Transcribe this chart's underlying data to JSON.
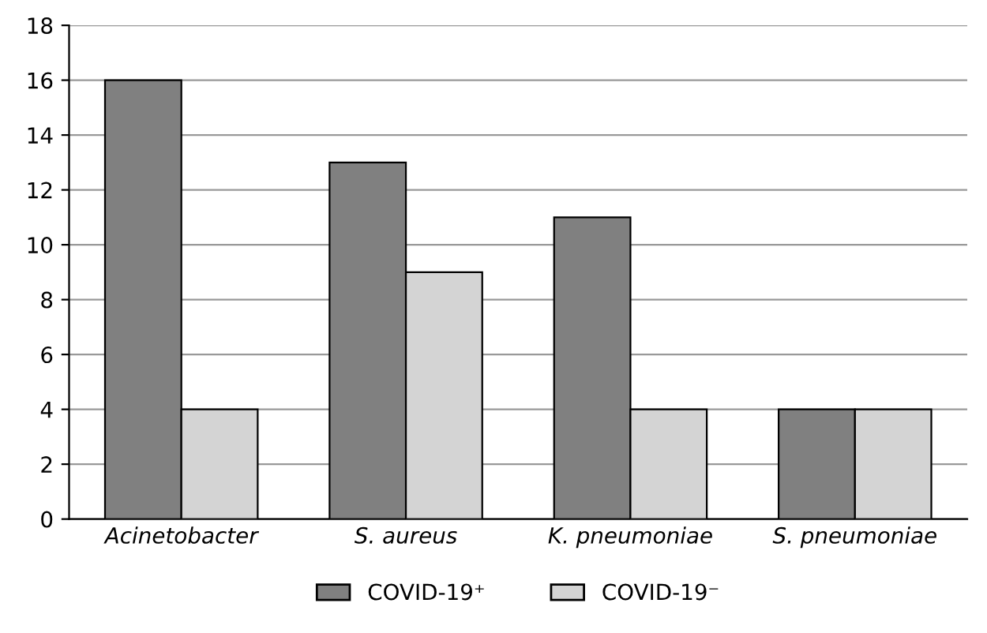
{
  "chart_data": {
    "type": "bar",
    "categories": [
      "Acinetobacter",
      "S. aureus",
      "K. pneumoniae",
      "S. pneumoniae"
    ],
    "series": [
      {
        "name": "COVID-19⁺",
        "color": "#808080",
        "values": [
          16,
          13,
          11,
          4
        ]
      },
      {
        "name": "COVID-19⁻",
        "color": "#d4d4d4",
        "values": [
          4,
          9,
          4,
          4
        ]
      }
    ],
    "ylim": [
      0,
      18
    ],
    "yticks": [
      0,
      2,
      4,
      6,
      8,
      10,
      12,
      14,
      16,
      18
    ],
    "grid": "y",
    "legend": "bottom"
  }
}
